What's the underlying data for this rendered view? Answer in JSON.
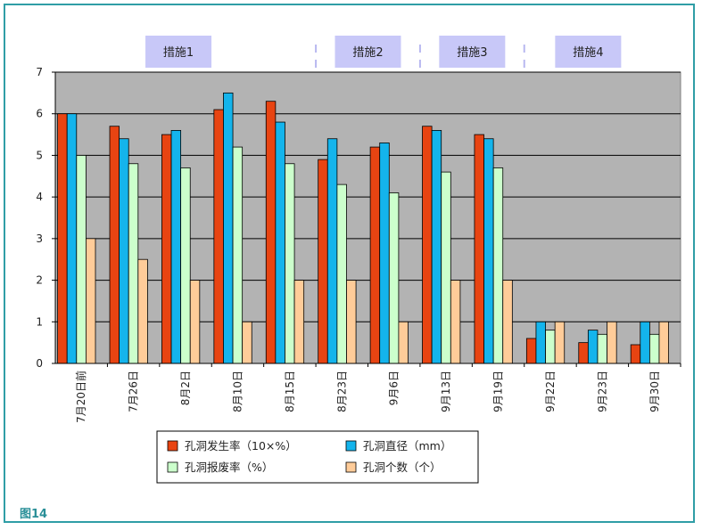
{
  "figure_label": "图14",
  "chart_data": {
    "type": "bar",
    "title": "",
    "xlabel": "",
    "ylabel": "",
    "ylim": [
      0,
      7
    ],
    "yticks": [
      "0",
      "1",
      "2",
      "3",
      "4",
      "5",
      "6",
      "7"
    ],
    "grid": true,
    "legend_position": "bottom-center",
    "categories": [
      "7月20日前",
      "7月26日",
      "8月2日",
      "8月10日",
      "8月15日",
      "8月23日",
      "9月6日",
      "9月13日",
      "9月19日",
      "9月22日",
      "9月23日",
      "9月30日"
    ],
    "series": [
      {
        "name": "孔洞发生率（10×%）",
        "color": "#e84412",
        "values": [
          6.0,
          5.7,
          5.5,
          6.1,
          6.3,
          4.9,
          5.2,
          5.7,
          5.5,
          0.6,
          0.5,
          0.45
        ]
      },
      {
        "name": "孔洞直径（mm）",
        "color": "#14b4ec",
        "values": [
          6.0,
          5.4,
          5.6,
          6.5,
          5.8,
          5.4,
          5.3,
          5.6,
          5.4,
          1.0,
          0.8,
          1.0
        ]
      },
      {
        "name": "孔洞报废率（%）",
        "color": "#ccffcc",
        "values": [
          5.0,
          4.8,
          4.7,
          5.2,
          4.8,
          4.3,
          4.1,
          4.6,
          4.7,
          0.8,
          0.7,
          0.7
        ]
      },
      {
        "name": "孔洞个数（个）",
        "color": "#ffcc99",
        "values": [
          3.0,
          2.5,
          2.0,
          1.0,
          2.0,
          2.0,
          1.0,
          2.0,
          2.0,
          1.0,
          1.0,
          1.0
        ]
      }
    ],
    "annotations": [
      {
        "label": "措施1",
        "from": 0,
        "to": 4
      },
      {
        "label": "措施2",
        "from": 5,
        "to": 6
      },
      {
        "label": "措施3",
        "from": 7,
        "to": 8
      },
      {
        "label": "措施4",
        "from": 9,
        "to": 11
      }
    ],
    "colors": {
      "plot_background": "#b3b3b3",
      "measure_box": "#c8c8f8",
      "divider": "#b8b8f0"
    }
  }
}
